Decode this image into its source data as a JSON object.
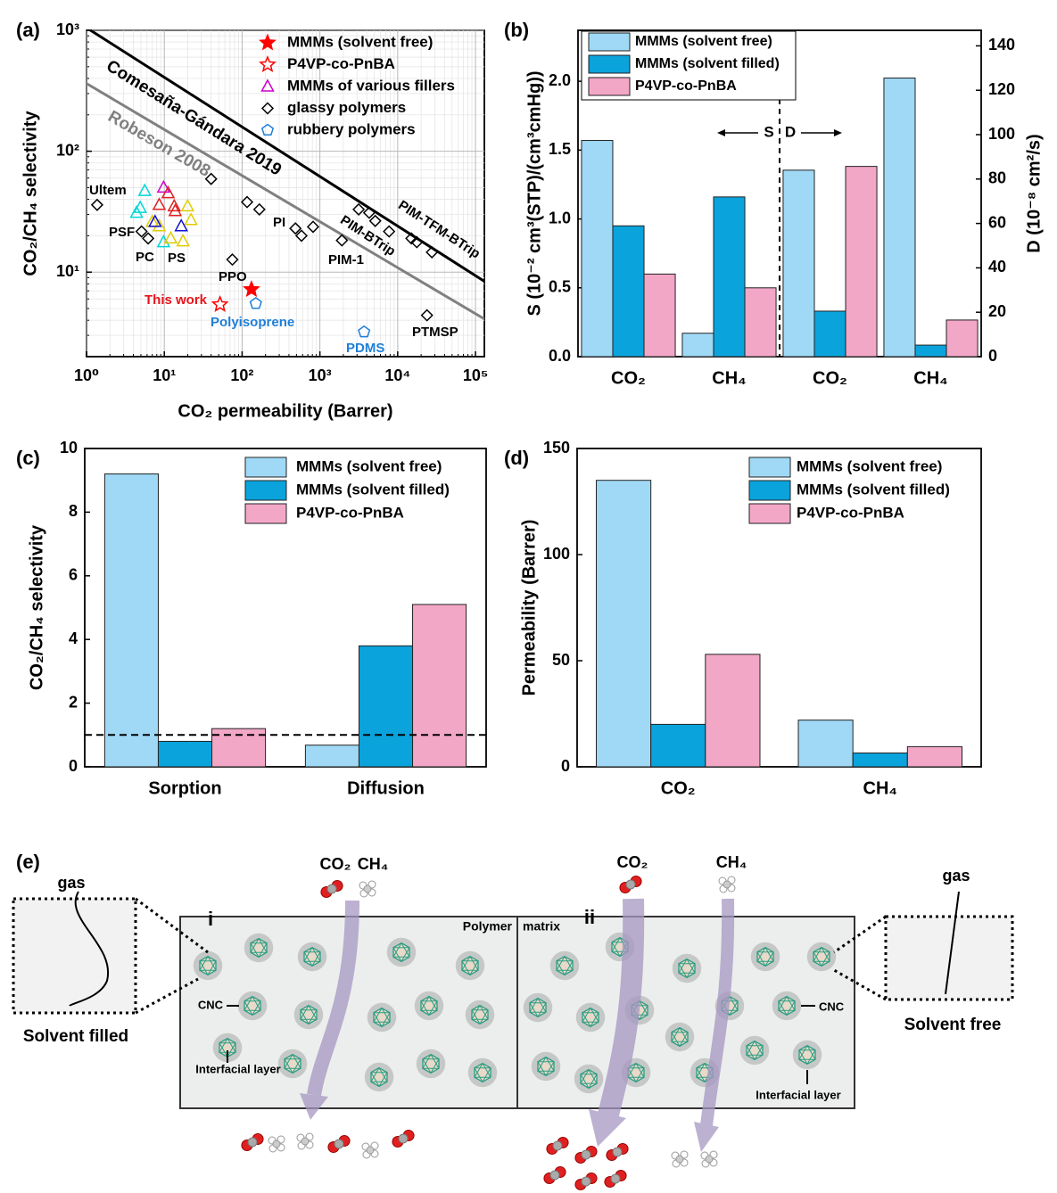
{
  "chart_data": [
    {
      "type": "scatter",
      "panel_label": "(a)",
      "x_label": "CO₂ permeability (Barrer)",
      "y_label": "CO₂/CH₄ selectivity",
      "log_x": true,
      "log_y": true,
      "grid": true,
      "legend_loc": "upper right",
      "xlim": [
        1,
        130000
      ],
      "ylim": [
        2,
        1000
      ],
      "xticks": [
        {
          "value": 1,
          "label": "10⁰"
        },
        {
          "value": 10,
          "label": "10¹"
        },
        {
          "value": 100,
          "label": "10²"
        },
        {
          "value": 1000,
          "label": "10³"
        },
        {
          "value": 10000,
          "label": "10⁴"
        },
        {
          "value": 100000,
          "label": "10⁵"
        }
      ],
      "yticks": [
        {
          "value": 10,
          "label": "10¹"
        },
        {
          "value": 100,
          "label": "10²"
        },
        {
          "value": 1000,
          "label": "10³"
        }
      ],
      "series": [
        {
          "name": "MMMs (solvent free)",
          "marker": "star",
          "filled": true,
          "color": "#ff0000",
          "x": [
            132
          ],
          "values": [
            7.2
          ]
        },
        {
          "name": "P4VP-co-PnBA",
          "marker": "star",
          "filled": false,
          "color": "#ff0000",
          "x": [
            52
          ],
          "values": [
            5.4
          ]
        },
        {
          "name": "MMMs of various fillers",
          "marker": "triangle",
          "filled": false,
          "color": "#cc00cc",
          "point_colors": [
            "#00d8d8",
            "#00d8d8",
            "#00d8d8",
            "#00d8d8",
            "#cc00cc",
            "#e02020",
            "#e02020",
            "#e02020",
            "#e02020",
            "#e0cc00",
            "#e0cc00",
            "#e0cc00",
            "#e0cc00",
            "#e0cc00",
            "#e0cc00",
            "#1010cc",
            "#1010cc"
          ],
          "x": [
            5.6,
            4.9,
            4.4,
            9.8,
            9.8,
            11.2,
            8.6,
            13.4,
            13.8,
            19.9,
            22,
            7,
            8.6,
            17.4,
            12.1,
            7.6,
            16.5
          ],
          "values": [
            47,
            34,
            31,
            17.7,
            50,
            45,
            36,
            35,
            32,
            35,
            27,
            26,
            24,
            18,
            19,
            26,
            24
          ]
        },
        {
          "name": "glassy polymers",
          "marker": "diamond",
          "filled": false,
          "color": "#000000",
          "x": [
            1.37,
            5.1,
            6.2,
            40,
            116,
            167,
            485,
            580,
            818,
            1920,
            75,
            3150,
            4300,
            5150,
            7750,
            15000,
            17600,
            27500,
            23800
          ],
          "values": [
            36,
            21.7,
            19,
            59,
            38,
            33,
            23,
            20,
            23.7,
            18.3,
            12.7,
            33,
            31,
            26.5,
            21.7,
            19,
            17.7,
            14.6,
            4.4
          ]
        },
        {
          "name": "rubbery polymers",
          "marker": "pentagon",
          "filled": false,
          "color": "#1e7fd8",
          "x": [
            150,
            3700
          ],
          "values": [
            5.5,
            3.2
          ]
        }
      ],
      "bounds": [
        {
          "name": "Comesaña-Gándara 2019",
          "color": "#000000",
          "x": [
            1,
            130000
          ],
          "values": [
            1050,
            8.4
          ]
        },
        {
          "name": "Robeson 2008",
          "color": "#808080",
          "x": [
            1,
            130000
          ],
          "values": [
            363,
            4.1
          ]
        }
      ],
      "annotations": [
        {
          "text": "Ultem",
          "color": "#000000"
        },
        {
          "text": "PSF",
          "color": "#000000"
        },
        {
          "text": "PC",
          "color": "#000000"
        },
        {
          "text": "PS",
          "color": "#000000"
        },
        {
          "text": "PPO",
          "color": "#000000"
        },
        {
          "text": "PI",
          "color": "#000000"
        },
        {
          "text": "PIM-1",
          "color": "#000000"
        },
        {
          "text": "PIM-BTrip",
          "color": "#000000"
        },
        {
          "text": "PIM-TFM-BTrip",
          "color": "#000000"
        },
        {
          "text": "PTMSP",
          "color": "#000000"
        },
        {
          "text": "This work",
          "color": "#e8141c"
        },
        {
          "text": "Polyisoprene",
          "color": "#1e7fd8"
        },
        {
          "text": "PDMS",
          "color": "#1e7fd8"
        }
      ]
    },
    {
      "type": "bar",
      "panel_label": "(b)",
      "y_label": "S (10⁻² cm³(STP)/(cm³cmHg))",
      "y2_label": "D (10⁻⁸ cm²/s)",
      "legend_loc": "upper left",
      "categories": [
        "CO₂",
        "CH₄",
        "CO₂",
        "CH₄"
      ],
      "category_axis": [
        "y",
        "y",
        "y2",
        "y2"
      ],
      "ylim": [
        0,
        2.37
      ],
      "yticks": [
        {
          "value": 0,
          "label": "0.0"
        },
        0.5,
        {
          "value": 1,
          "label": "1.0"
        },
        1.5,
        {
          "value": 2,
          "label": "2.0"
        }
      ],
      "y2lim": [
        0,
        147
      ],
      "y2ticks": [
        0,
        20,
        40,
        60,
        80,
        100,
        120,
        140
      ],
      "annotations": [
        "S",
        "D"
      ],
      "series": [
        {
          "name": "MMMs (solvent free)",
          "color": "#9fd9f6",
          "values": [
            1.57,
            0.17,
            84,
            125.5
          ]
        },
        {
          "name": "MMMs (solvent filled)",
          "color": "#0aa3dc",
          "values": [
            0.95,
            1.16,
            20.5,
            5.2
          ]
        },
        {
          "name": "P4VP-co-PnBA",
          "color": "#f2a7c7",
          "values": [
            0.6,
            0.5,
            85.7,
            16.5
          ]
        }
      ]
    },
    {
      "type": "bar",
      "panel_label": "(c)",
      "y_label": "CO₂/CH₄ selectivity",
      "legend_loc": "upper right",
      "categories": [
        "Sorption",
        "Diffusion"
      ],
      "ylim": [
        0,
        10
      ],
      "yticks": [
        0,
        2,
        4,
        6,
        8,
        10
      ],
      "reference_line": 1,
      "series": [
        {
          "name": "MMMs (solvent free)",
          "color": "#9fd9f6",
          "values": [
            9.2,
            0.68
          ]
        },
        {
          "name": "MMMs (solvent filled)",
          "color": "#0aa3dc",
          "values": [
            0.8,
            3.8
          ]
        },
        {
          "name": "P4VP-co-PnBA",
          "color": "#f2a7c7",
          "values": [
            1.2,
            5.1
          ]
        }
      ]
    },
    {
      "type": "bar",
      "panel_label": "(d)",
      "y_label": "Permeability (Barrer)",
      "legend_loc": "upper right",
      "categories": [
        "CO₂",
        "CH₄"
      ],
      "ylim": [
        0,
        150
      ],
      "yticks": [
        0,
        50,
        100,
        150
      ],
      "series": [
        {
          "name": "MMMs (solvent free)",
          "color": "#9fd9f6",
          "values": [
            135,
            22
          ]
        },
        {
          "name": "MMMs (solvent filled)",
          "color": "#0aa3dc",
          "values": [
            20,
            6.5
          ]
        },
        {
          "name": "P4VP-co-PnBA",
          "color": "#f2a7c7",
          "values": [
            53,
            9.5
          ]
        }
      ]
    }
  ],
  "diagram": {
    "panel_label": "(e)",
    "left_inset": {
      "gas": "gas",
      "caption": "Solvent filled"
    },
    "right_inset": {
      "gas": "gas",
      "caption": "Solvent free"
    },
    "sections": [
      {
        "label": "i",
        "gases": [
          "CO₂",
          "CH₄"
        ]
      },
      {
        "label": "ii",
        "gases": [
          "CO₂",
          "CH₄"
        ]
      }
    ],
    "matrix_label": [
      "Polymer",
      "matrix"
    ],
    "callouts": [
      "CNC",
      "Interfacial layer",
      "CNC",
      "Interfacial layer"
    ]
  }
}
